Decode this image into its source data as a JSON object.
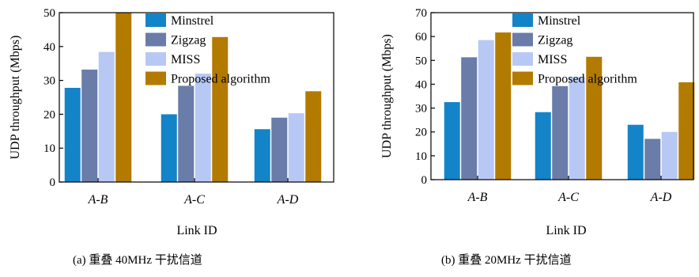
{
  "chart_data": [
    {
      "type": "bar",
      "ylabel": "UDP throughput (Mbps)",
      "xlabel": "Link ID",
      "caption": "(a)  重叠 40MHz 干扰信道",
      "ylim": [
        0,
        50
      ],
      "yticks": [
        0,
        10,
        20,
        30,
        40,
        50
      ],
      "categories": [
        "A-B",
        "A-C",
        "A-D"
      ],
      "legend_position": "top-center",
      "grid": false,
      "series": [
        {
          "name": "Minstrel",
          "color": "#1384c8",
          "values": [
            27.8,
            20.0,
            15.6
          ]
        },
        {
          "name": "Zigzag",
          "color": "#6a7ca8",
          "values": [
            33.2,
            28.4,
            19.0
          ]
        },
        {
          "name": "MISS",
          "color": "#b8c8f5",
          "values": [
            38.4,
            32.0,
            20.3
          ]
        },
        {
          "name": "Proposed algorithm",
          "color": "#b37a00",
          "values": [
            50.0,
            42.8,
            26.8
          ]
        }
      ]
    },
    {
      "type": "bar",
      "ylabel": "UDP throughput (Mbps)",
      "xlabel": "Link ID",
      "caption": "(b)  重叠 20MHz 干扰信道",
      "ylim": [
        0,
        70
      ],
      "yticks": [
        0,
        10,
        20,
        30,
        40,
        50,
        60,
        70
      ],
      "categories": [
        "A-B",
        "A-C",
        "A-D"
      ],
      "legend_position": "top-center",
      "grid": false,
      "series": [
        {
          "name": "Minstrel",
          "color": "#1384c8",
          "values": [
            32.5,
            28.3,
            23.0
          ]
        },
        {
          "name": "Zigzag",
          "color": "#6a7ca8",
          "values": [
            51.3,
            39.2,
            17.1
          ]
        },
        {
          "name": "MISS",
          "color": "#b8c8f5",
          "values": [
            58.5,
            43.0,
            20.0
          ]
        },
        {
          "name": "Proposed algorithm",
          "color": "#b37a00",
          "values": [
            61.7,
            51.5,
            40.8
          ]
        }
      ]
    }
  ]
}
